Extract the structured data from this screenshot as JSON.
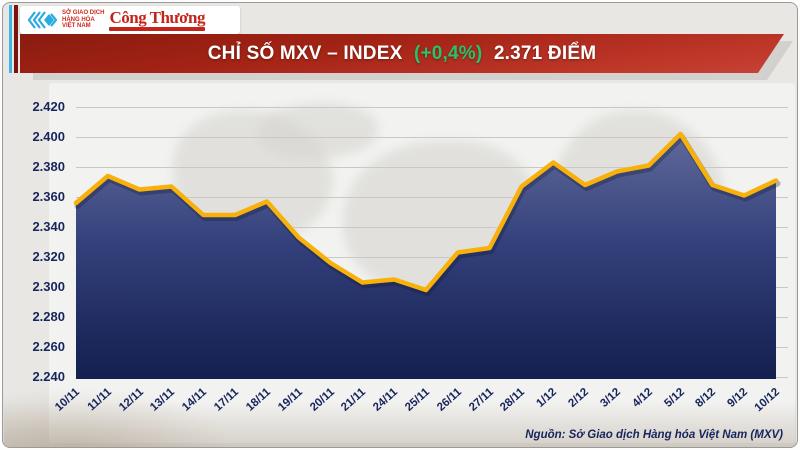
{
  "header": {
    "logo": {
      "mxv_lines": [
        "SỞ GIAO DỊCH",
        "HÀNG HÓA",
        "VIỆT NAM"
      ],
      "congthuong": "Công Thương"
    },
    "banner": {
      "title_main": "CHỈ SỐ MXV – INDEX",
      "title_change": "(+0,4%)",
      "title_value": "2.371 ĐIỂM",
      "change_color": "#27c36a",
      "banner_color": "#b13023"
    }
  },
  "chart_data": {
    "type": "area",
    "title": "CHỈ SỐ MXV – INDEX (+0,4%) 2.371 ĐIỂM",
    "x": [
      "10/11",
      "11/11",
      "12/11",
      "13/11",
      "14/11",
      "17/11",
      "18/11",
      "19/11",
      "20/11",
      "21/11",
      "24/11",
      "25/11",
      "26/11",
      "27/11",
      "28/11",
      "1/12",
      "2/12",
      "3/12",
      "4/12",
      "5/12",
      "8/12",
      "9/12",
      "10/12"
    ],
    "values": [
      2.356,
      2.374,
      2.365,
      2.367,
      2.348,
      2.348,
      2.357,
      2.333,
      2.316,
      2.303,
      2.305,
      2.298,
      2.323,
      2.326,
      2.367,
      2.383,
      2.368,
      2.377,
      2.381,
      2.402,
      2.368,
      2.361,
      2.371
    ],
    "ylim": [
      2.24,
      2.42
    ],
    "y_ticks": [
      "2.420",
      "2.400",
      "2.380",
      "2.360",
      "2.340",
      "2.320",
      "2.300",
      "2.280",
      "2.260",
      "2.240"
    ],
    "xlabel": "",
    "ylabel": "",
    "grid": true,
    "legend": "none",
    "line_color": "#f7b10a",
    "fill_top": "#60699a",
    "fill_bottom": "#131f4e",
    "axis_text_color": "#17255c"
  },
  "footer": {
    "source": "Nguồn: Sở Giao dịch Hàng hóa Việt Nam (MXV)"
  }
}
